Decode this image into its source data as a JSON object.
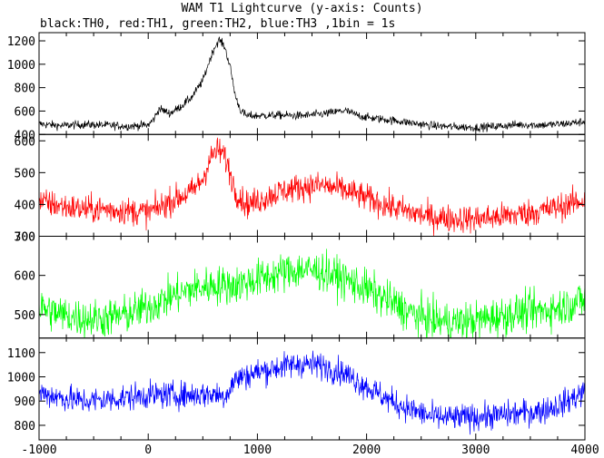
{
  "chart_data": {
    "type": "line",
    "title": "WAM T1 Lightcurve (y-axis: Counts)",
    "subtitle": "black:TH0, red:TH1, green:TH2, blue:TH3 ,1bin = 1s",
    "xlim": [
      -1000,
      4000
    ],
    "x_ticks": [
      -1000,
      0,
      1000,
      2000,
      3000,
      4000
    ],
    "x_tick_labels": [
      "-1000",
      "0",
      "1000",
      "2000",
      "3000",
      "4000"
    ],
    "grid": false,
    "panels": [
      {
        "channel": "TH0",
        "color": "#000000",
        "ylim": [
          400,
          1270
        ],
        "y_ticks": [
          400,
          600,
          800,
          1000,
          1200
        ],
        "y_tick_labels": [
          "400",
          "600",
          "800",
          "1000",
          "1200"
        ],
        "noise": 18,
        "x": [
          -1000,
          -800,
          -600,
          -400,
          -200,
          0,
          50,
          100,
          150,
          200,
          300,
          400,
          500,
          550,
          600,
          650,
          700,
          750,
          800,
          850,
          900,
          1000,
          1200,
          1400,
          1600,
          1800,
          1900,
          2000,
          2200,
          2400,
          2600,
          2800,
          3000,
          3200,
          3400,
          3600,
          3800,
          4000
        ],
        "y": [
          490,
          475,
          485,
          480,
          470,
          480,
          530,
          620,
          600,
          580,
          640,
          720,
          860,
          1000,
          1130,
          1210,
          1150,
          980,
          720,
          600,
          560,
          560,
          565,
          560,
          575,
          605,
          570,
          545,
          525,
          500,
          475,
          465,
          460,
          470,
          485,
          480,
          490,
          510
        ]
      },
      {
        "channel": "TH1",
        "color": "#ff0000",
        "ylim": [
          300,
          620
        ],
        "y_ticks": [
          300,
          400,
          500,
          600
        ],
        "y_tick_labels": [
          "300",
          "400",
          "500",
          "600"
        ],
        "noise": 22,
        "x": [
          -1000,
          -800,
          -600,
          -400,
          -200,
          0,
          100,
          200,
          400,
          500,
          550,
          600,
          650,
          700,
          750,
          800,
          900,
          1000,
          1200,
          1400,
          1600,
          1800,
          2000,
          2200,
          2400,
          2600,
          2800,
          3000,
          3200,
          3400,
          3600,
          3800,
          4000
        ],
        "y": [
          410,
          395,
          385,
          385,
          380,
          375,
          390,
          410,
          440,
          480,
          530,
          560,
          570,
          550,
          500,
          440,
          400,
          410,
          440,
          455,
          460,
          445,
          420,
          395,
          375,
          360,
          355,
          355,
          360,
          370,
          380,
          395,
          415
        ]
      },
      {
        "channel": "TH2",
        "color": "#00ff00",
        "ylim": [
          440,
          700
        ],
        "y_ticks": [
          500,
          600,
          700
        ],
        "y_tick_labels": [
          "500",
          "600",
          "700"
        ],
        "noise": 25,
        "x": [
          -1000,
          -800,
          -600,
          -400,
          -200,
          0,
          200,
          400,
          600,
          800,
          1000,
          1200,
          1400,
          1600,
          1800,
          2000,
          2200,
          2400,
          2600,
          2800,
          3000,
          3200,
          3400,
          3600,
          3800,
          4000
        ],
        "y": [
          520,
          500,
          490,
          490,
          500,
          520,
          545,
          565,
          575,
          575,
          590,
          605,
          615,
          610,
          590,
          565,
          535,
          505,
          485,
          480,
          485,
          495,
          505,
          510,
          520,
          540
        ]
      },
      {
        "channel": "TH3",
        "color": "#0000ff",
        "ylim": [
          740,
          1160
        ],
        "y_ticks": [
          800,
          900,
          1000,
          1100
        ],
        "y_tick_labels": [
          "800",
          "900",
          "1000",
          "1100"
        ],
        "noise": 28,
        "x": [
          -1000,
          -800,
          -600,
          -400,
          -200,
          0,
          200,
          400,
          600,
          700,
          800,
          1000,
          1200,
          1400,
          1600,
          1800,
          2000,
          2200,
          2400,
          2600,
          2800,
          3000,
          3200,
          3400,
          3600,
          3800,
          4000
        ],
        "y": [
          935,
          915,
          900,
          905,
          915,
          925,
          925,
          925,
          930,
          920,
          990,
          1020,
          1040,
          1055,
          1045,
          1015,
          960,
          905,
          865,
          835,
          830,
          835,
          840,
          850,
          860,
          890,
          940
        ]
      }
    ]
  }
}
